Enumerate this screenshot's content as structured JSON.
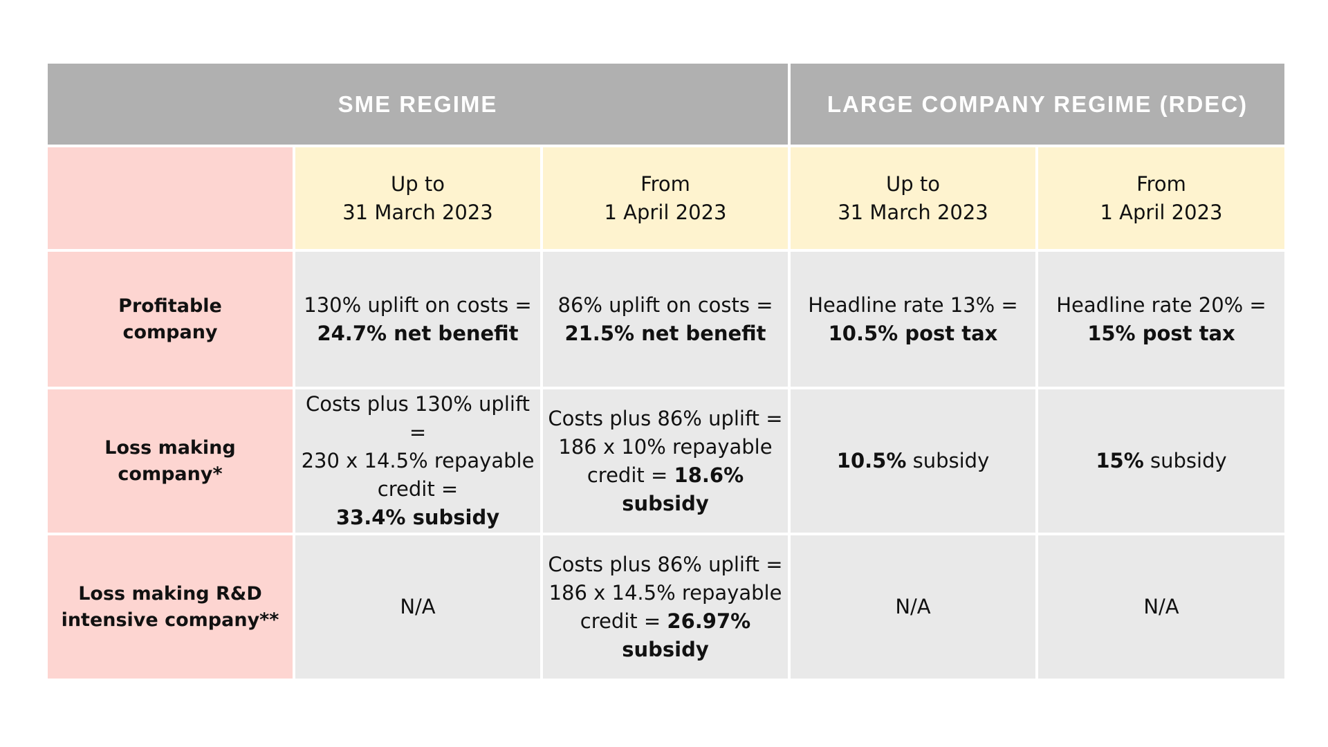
{
  "header": {
    "sme": "SME REGIME",
    "large": "LARGE COMPANY REGIME (RDEC)"
  },
  "dates": {
    "sme_up_to": {
      "line1": "Up to",
      "line2": "31 March 2023"
    },
    "sme_from": {
      "line1": "From",
      "line2": "1 April 2023"
    },
    "large_up_to": {
      "line1": "Up to",
      "line2": "31 March 2023"
    },
    "large_from": {
      "line1": "From",
      "line2": "1 April 2023"
    }
  },
  "rows": {
    "profitable": {
      "label_line1": "Profitable",
      "label_line2": "company",
      "sme_up_to": {
        "plain": "130% uplift on costs =",
        "bold": "24.7% net benefit"
      },
      "sme_from": {
        "plain": "86% uplift on costs =",
        "bold": "21.5% net benefit"
      },
      "large_up_to": {
        "plain": "Headline rate 13% =",
        "bold": "10.5% post tax"
      },
      "large_from": {
        "plain": "Headline rate 20% =",
        "bold": "15% post tax"
      }
    },
    "loss_making": {
      "label_line1": "Loss making",
      "label_line2": "company*",
      "sme_up_to": {
        "line1": "Costs plus 130% uplift =",
        "line2": "230 x 14.5% repayable",
        "line3": "credit =",
        "bold": "33.4% subsidy"
      },
      "sme_from": {
        "line1": "Costs plus 86% uplift =",
        "line2": "186 x 10% repayable",
        "line3": "credit = ",
        "bold": "18.6% subsidy"
      },
      "large_up_to": {
        "bold": "10.5%",
        "plain": " subsidy"
      },
      "large_from": {
        "bold": "15%",
        "plain": " subsidy"
      }
    },
    "intensive": {
      "label_line1": "Loss making R&D",
      "label_line2": "intensive company**",
      "sme_up_to": "N/A",
      "sme_from": {
        "line1": "Costs plus 86% uplift =",
        "line2": "186 x 14.5% repayable",
        "line3": "credit = ",
        "bold1": "26.97%",
        "bold2": "subsidy"
      },
      "large_up_to": "N/A",
      "large_from": "N/A"
    }
  },
  "colors": {
    "header_bg": "#b0b0b0",
    "label_bg": "#fdd5d1",
    "date_bg": "#fef3cf",
    "body_bg": "#e9e9e9"
  }
}
